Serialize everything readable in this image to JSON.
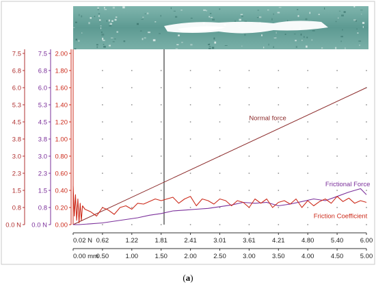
{
  "caption": {
    "open": "(",
    "letter": "a",
    "close": ")"
  },
  "chart_data": {
    "type": "line",
    "title": "",
    "grid": true,
    "left_axes": [
      {
        "name": "normal-force-axis",
        "color": "#b03030",
        "ticks": [
          "7.5",
          "6.8",
          "6.0",
          "5.3",
          "4.5",
          "3.8",
          "3.0",
          "2.3",
          "1.5",
          "0.8",
          "0.0 N"
        ]
      },
      {
        "name": "frictional-force-axis",
        "color": "#7a2f9a",
        "ticks": [
          "7.5",
          "6.8",
          "6.0",
          "5.3",
          "4.5",
          "3.8",
          "3.0",
          "2.3",
          "1.5",
          "0.8",
          "0.0 N"
        ]
      },
      {
        "name": "friction-coefficient-axis",
        "color": "#cc2a1a",
        "ticks": [
          "2.00",
          "1.80",
          "1.60",
          "1.40",
          "1.20",
          "1.00",
          "0.80",
          "0.60",
          "0.40",
          "0.20",
          "0.00"
        ]
      }
    ],
    "ylim": [
      0,
      2.0
    ],
    "x_axis_top": {
      "ticks": [
        "0.02 N",
        "0.62",
        "1.22",
        "1.81",
        "2.41",
        "3.01",
        "3.61",
        "4.21",
        "4.80",
        "5.40",
        "6.00"
      ]
    },
    "x_axis_bottom": {
      "ticks": [
        "0.00 mm",
        "0.50",
        "1.00",
        "1.50",
        "2.00",
        "2.50",
        "3.00",
        "3.50",
        "4.00",
        "4.50",
        "5.00"
      ]
    },
    "xlim": [
      0,
      5.0
    ],
    "cursor_x": 1.55,
    "series": [
      {
        "name": "Normal force",
        "color": "#8b2a2a",
        "x": [
          0.0,
          5.0
        ],
        "y": [
          0.0,
          1.6
        ]
      },
      {
        "name": "Frictional Force",
        "color": "#7a2f9a",
        "x": [
          0.0,
          0.1,
          0.3,
          0.5,
          0.7,
          0.9,
          1.1,
          1.3,
          1.5,
          1.7,
          1.9,
          2.1,
          2.3,
          2.5,
          2.7,
          2.9,
          3.1,
          3.3,
          3.5,
          3.7,
          3.9,
          4.1,
          4.3,
          4.5,
          4.7,
          4.9,
          5.0
        ],
        "y": [
          0.0,
          0.0,
          0.01,
          0.02,
          0.04,
          0.06,
          0.08,
          0.11,
          0.13,
          0.16,
          0.17,
          0.18,
          0.19,
          0.21,
          0.23,
          0.26,
          0.25,
          0.26,
          0.22,
          0.24,
          0.27,
          0.3,
          0.28,
          0.33,
          0.38,
          0.42,
          0.35
        ]
      },
      {
        "name": "Friction Coefficient",
        "color": "#cc2a1a",
        "x": [
          0.0,
          0.02,
          0.04,
          0.06,
          0.08,
          0.1,
          0.12,
          0.14,
          0.16,
          0.2,
          0.3,
          0.4,
          0.5,
          0.6,
          0.7,
          0.8,
          0.9,
          1.0,
          1.1,
          1.2,
          1.3,
          1.4,
          1.5,
          1.6,
          1.7,
          1.8,
          1.9,
          2.0,
          2.1,
          2.2,
          2.3,
          2.4,
          2.5,
          2.6,
          2.7,
          2.8,
          2.9,
          3.0,
          3.1,
          3.2,
          3.3,
          3.4,
          3.5,
          3.6,
          3.7,
          3.8,
          3.9,
          4.0,
          4.1,
          4.2,
          4.3,
          4.4,
          4.5,
          4.6,
          4.7,
          4.8,
          4.9,
          5.0
        ],
        "y": [
          0.45,
          0.1,
          0.35,
          0.05,
          0.3,
          0.02,
          0.25,
          0.05,
          0.22,
          0.18,
          0.15,
          0.1,
          0.2,
          0.17,
          0.12,
          0.2,
          0.22,
          0.18,
          0.25,
          0.24,
          0.27,
          0.3,
          0.28,
          0.3,
          0.32,
          0.25,
          0.3,
          0.33,
          0.22,
          0.3,
          0.28,
          0.24,
          0.3,
          0.28,
          0.22,
          0.28,
          0.26,
          0.2,
          0.3,
          0.25,
          0.3,
          0.2,
          0.26,
          0.28,
          0.24,
          0.3,
          0.2,
          0.28,
          0.22,
          0.27,
          0.3,
          0.25,
          0.33,
          0.27,
          0.31,
          0.25,
          0.28,
          0.26
        ]
      }
    ],
    "annotations": [
      {
        "name": "normal-force-label",
        "text": "Normal force",
        "x": 3.0,
        "y": 1.22
      },
      {
        "name": "frictional-force-label",
        "text": "Frictional Force",
        "x": 4.3,
        "y": 0.45
      },
      {
        "name": "friction-coefficient-label",
        "text": "Friction Coefficient",
        "x": 4.1,
        "y": 0.075
      }
    ]
  },
  "micrograph": {
    "name": "scratch-track-micrograph"
  }
}
